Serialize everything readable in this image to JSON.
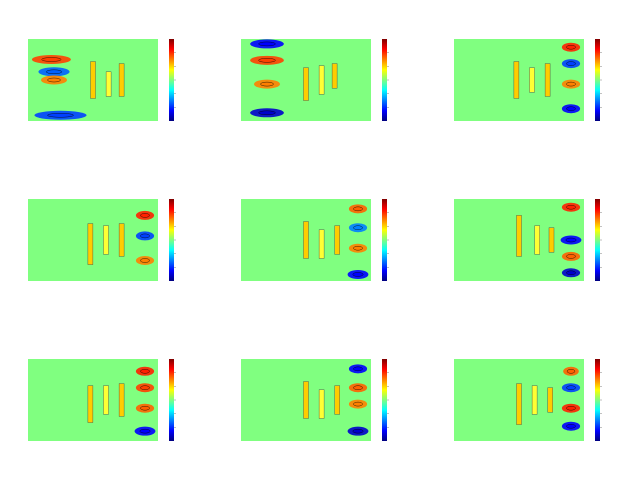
{
  "figure": {
    "background": "#ffffff",
    "rows": 3,
    "cols": 3
  },
  "colormap": {
    "name": "jet",
    "stops": [
      "#00007f",
      "#0000ff",
      "#007fff",
      "#00ffff",
      "#7fff7f",
      "#ffff00",
      "#ff7f00",
      "#ff0000",
      "#7f0000"
    ],
    "background_value_color": "#80ff80"
  },
  "chart_data": [
    {
      "type": "heatmap",
      "panel": 1,
      "colorbar": true,
      "features": [
        {
          "kind": "band",
          "color": "#ff4000",
          "u": 0.18,
          "v": 0.25,
          "w": 0.3
        },
        {
          "kind": "band",
          "color": "#0060ff",
          "u": 0.2,
          "v": 0.4,
          "w": 0.24
        },
        {
          "kind": "band",
          "color": "#ff8000",
          "u": 0.2,
          "v": 0.5,
          "w": 0.2
        },
        {
          "kind": "band",
          "color": "#0040ff",
          "u": 0.25,
          "v": 0.93,
          "w": 0.4
        },
        {
          "kind": "bar",
          "color": "#ffcc00",
          "u": 0.5,
          "v": 0.5,
          "h": 0.45
        },
        {
          "kind": "bar",
          "color": "#ffff33",
          "u": 0.62,
          "v": 0.55,
          "h": 0.3
        },
        {
          "kind": "bar",
          "color": "#ffcc00",
          "u": 0.72,
          "v": 0.5,
          "h": 0.4
        }
      ]
    },
    {
      "type": "heatmap",
      "panel": 2,
      "colorbar": true,
      "features": [
        {
          "kind": "band",
          "color": "#0000ff",
          "u": 0.2,
          "v": 0.06,
          "w": 0.26
        },
        {
          "kind": "band",
          "color": "#ff4000",
          "u": 0.2,
          "v": 0.26,
          "w": 0.26
        },
        {
          "kind": "band",
          "color": "#ff8000",
          "u": 0.2,
          "v": 0.55,
          "w": 0.2
        },
        {
          "kind": "band",
          "color": "#0000cc",
          "u": 0.2,
          "v": 0.9,
          "w": 0.26
        },
        {
          "kind": "bar",
          "color": "#ffcc00",
          "u": 0.5,
          "v": 0.55,
          "h": 0.4
        },
        {
          "kind": "bar",
          "color": "#ffff33",
          "u": 0.62,
          "v": 0.5,
          "h": 0.35
        },
        {
          "kind": "bar",
          "color": "#ffcc00",
          "u": 0.72,
          "v": 0.45,
          "h": 0.3
        }
      ]
    },
    {
      "type": "heatmap",
      "panel": 3,
      "colorbar": true,
      "features": [
        {
          "kind": "band",
          "color": "#ff2000",
          "u": 0.9,
          "v": 0.1,
          "w": 0.14
        },
        {
          "kind": "band",
          "color": "#0040ff",
          "u": 0.9,
          "v": 0.3,
          "w": 0.14
        },
        {
          "kind": "band",
          "color": "#ff8000",
          "u": 0.9,
          "v": 0.55,
          "w": 0.14
        },
        {
          "kind": "band",
          "color": "#0000ff",
          "u": 0.9,
          "v": 0.85,
          "w": 0.14
        },
        {
          "kind": "bar",
          "color": "#ffcc00",
          "u": 0.48,
          "v": 0.5,
          "h": 0.45
        },
        {
          "kind": "bar",
          "color": "#ffff33",
          "u": 0.6,
          "v": 0.5,
          "h": 0.3
        },
        {
          "kind": "bar",
          "color": "#ffcc00",
          "u": 0.72,
          "v": 0.5,
          "h": 0.4
        }
      ]
    },
    {
      "type": "heatmap",
      "panel": 4,
      "colorbar": true,
      "features": [
        {
          "kind": "band",
          "color": "#ff2000",
          "u": 0.9,
          "v": 0.2,
          "w": 0.14
        },
        {
          "kind": "band",
          "color": "#0040ff",
          "u": 0.9,
          "v": 0.45,
          "w": 0.14
        },
        {
          "kind": "band",
          "color": "#ff8000",
          "u": 0.9,
          "v": 0.75,
          "w": 0.14
        },
        {
          "kind": "bar",
          "color": "#ffcc00",
          "u": 0.48,
          "v": 0.55,
          "h": 0.5
        },
        {
          "kind": "bar",
          "color": "#ffff33",
          "u": 0.6,
          "v": 0.5,
          "h": 0.35
        },
        {
          "kind": "bar",
          "color": "#ffcc00",
          "u": 0.72,
          "v": 0.5,
          "h": 0.4
        }
      ]
    },
    {
      "type": "heatmap",
      "panel": 5,
      "colorbar": true,
      "features": [
        {
          "kind": "band",
          "color": "#ff6000",
          "u": 0.9,
          "v": 0.12,
          "w": 0.14
        },
        {
          "kind": "band",
          "color": "#0080ff",
          "u": 0.9,
          "v": 0.35,
          "w": 0.14
        },
        {
          "kind": "band",
          "color": "#ff8000",
          "u": 0.9,
          "v": 0.6,
          "w": 0.14
        },
        {
          "kind": "band",
          "color": "#0000ff",
          "u": 0.9,
          "v": 0.92,
          "w": 0.16
        },
        {
          "kind": "bar",
          "color": "#ffcc00",
          "u": 0.5,
          "v": 0.5,
          "h": 0.45
        },
        {
          "kind": "bar",
          "color": "#ffff33",
          "u": 0.62,
          "v": 0.55,
          "h": 0.35
        },
        {
          "kind": "bar",
          "color": "#ffcc00",
          "u": 0.74,
          "v": 0.5,
          "h": 0.35
        }
      ]
    },
    {
      "type": "heatmap",
      "panel": 6,
      "colorbar": true,
      "features": [
        {
          "kind": "band",
          "color": "#ff2000",
          "u": 0.9,
          "v": 0.1,
          "w": 0.14
        },
        {
          "kind": "band",
          "color": "#0000ff",
          "u": 0.9,
          "v": 0.5,
          "w": 0.16
        },
        {
          "kind": "band",
          "color": "#ff6000",
          "u": 0.9,
          "v": 0.7,
          "w": 0.14
        },
        {
          "kind": "band",
          "color": "#0000cc",
          "u": 0.9,
          "v": 0.9,
          "w": 0.14
        },
        {
          "kind": "bar",
          "color": "#ffcc00",
          "u": 0.5,
          "v": 0.45,
          "h": 0.5
        },
        {
          "kind": "bar",
          "color": "#ffff33",
          "u": 0.64,
          "v": 0.5,
          "h": 0.35
        },
        {
          "kind": "bar",
          "color": "#ffcc00",
          "u": 0.75,
          "v": 0.5,
          "h": 0.3
        }
      ]
    },
    {
      "type": "heatmap",
      "panel": 7,
      "colorbar": true,
      "features": [
        {
          "kind": "band",
          "color": "#ff2000",
          "u": 0.9,
          "v": 0.15,
          "w": 0.14
        },
        {
          "kind": "band",
          "color": "#ff4000",
          "u": 0.9,
          "v": 0.35,
          "w": 0.14
        },
        {
          "kind": "band",
          "color": "#ff6000",
          "u": 0.9,
          "v": 0.6,
          "w": 0.14
        },
        {
          "kind": "band",
          "color": "#0000ff",
          "u": 0.9,
          "v": 0.88,
          "w": 0.16
        },
        {
          "kind": "bar",
          "color": "#ffcc00",
          "u": 0.48,
          "v": 0.55,
          "h": 0.45
        },
        {
          "kind": "bar",
          "color": "#ffff33",
          "u": 0.6,
          "v": 0.5,
          "h": 0.35
        },
        {
          "kind": "bar",
          "color": "#ffcc00",
          "u": 0.72,
          "v": 0.5,
          "h": 0.4
        }
      ]
    },
    {
      "type": "heatmap",
      "panel": 8,
      "colorbar": true,
      "features": [
        {
          "kind": "band",
          "color": "#0000ff",
          "u": 0.9,
          "v": 0.12,
          "w": 0.14
        },
        {
          "kind": "band",
          "color": "#ff6000",
          "u": 0.9,
          "v": 0.35,
          "w": 0.14
        },
        {
          "kind": "band",
          "color": "#ff8000",
          "u": 0.9,
          "v": 0.55,
          "w": 0.14
        },
        {
          "kind": "band",
          "color": "#0000cc",
          "u": 0.9,
          "v": 0.88,
          "w": 0.16
        },
        {
          "kind": "bar",
          "color": "#ffcc00",
          "u": 0.5,
          "v": 0.5,
          "h": 0.45
        },
        {
          "kind": "bar",
          "color": "#ffff33",
          "u": 0.62,
          "v": 0.55,
          "h": 0.35
        },
        {
          "kind": "bar",
          "color": "#ffcc00",
          "u": 0.74,
          "v": 0.5,
          "h": 0.35
        }
      ]
    },
    {
      "type": "heatmap",
      "panel": 9,
      "colorbar": true,
      "features": [
        {
          "kind": "band",
          "color": "#ff6000",
          "u": 0.9,
          "v": 0.15,
          "w": 0.12
        },
        {
          "kind": "band",
          "color": "#0040ff",
          "u": 0.9,
          "v": 0.35,
          "w": 0.14
        },
        {
          "kind": "band",
          "color": "#ff2000",
          "u": 0.9,
          "v": 0.6,
          "w": 0.14
        },
        {
          "kind": "band",
          "color": "#0000ff",
          "u": 0.9,
          "v": 0.82,
          "w": 0.14
        },
        {
          "kind": "bar",
          "color": "#ffcc00",
          "u": 0.5,
          "v": 0.55,
          "h": 0.5
        },
        {
          "kind": "bar",
          "color": "#ffff33",
          "u": 0.62,
          "v": 0.5,
          "h": 0.35
        },
        {
          "kind": "bar",
          "color": "#ffcc00",
          "u": 0.74,
          "v": 0.5,
          "h": 0.3
        }
      ]
    }
  ]
}
